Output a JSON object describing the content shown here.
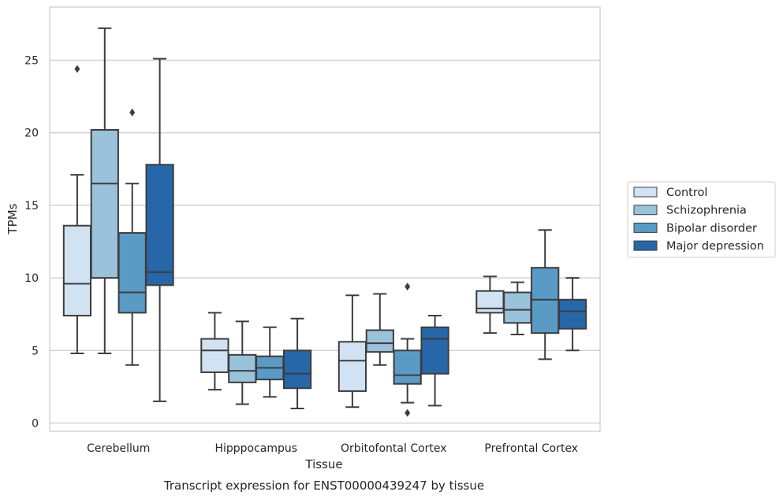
{
  "chart_data": {
    "type": "boxplot",
    "xlabel": "Tissue",
    "ylabel": "TPMs",
    "caption": "Transcript expression for ENST00000439247 by tissue",
    "ylim": [
      -0.6,
      28.0
    ],
    "yticks": [
      0,
      5,
      10,
      15,
      20,
      25
    ],
    "grid": "horizontal",
    "legend_position": "right",
    "categories": [
      "Cerebellum",
      "Hipppocampus",
      "Orbitofontal Cortex",
      "Prefrontal Cortex"
    ],
    "series": [
      {
        "name": "Control",
        "color": "#d1e2f2",
        "boxes": [
          {
            "whislo": 4.8,
            "q1": 7.4,
            "med": 9.6,
            "q3": 13.6,
            "whishi": 17.1,
            "fliers": [
              24.4
            ]
          },
          {
            "whislo": 2.3,
            "q1": 3.5,
            "med": 5.0,
            "q3": 5.8,
            "whishi": 7.6,
            "fliers": []
          },
          {
            "whislo": 1.1,
            "q1": 2.2,
            "med": 4.3,
            "q3": 5.6,
            "whishi": 8.8,
            "fliers": []
          },
          {
            "whislo": 6.2,
            "q1": 7.6,
            "med": 7.9,
            "q3": 9.1,
            "whishi": 10.1,
            "fliers": []
          }
        ]
      },
      {
        "name": "Schizophrenia",
        "color": "#9ac2db",
        "boxes": [
          {
            "whislo": 4.8,
            "q1": 10.0,
            "med": 16.5,
            "q3": 20.2,
            "whishi": 27.2,
            "fliers": []
          },
          {
            "whislo": 1.3,
            "q1": 2.8,
            "med": 3.6,
            "q3": 4.7,
            "whishi": 7.0,
            "fliers": []
          },
          {
            "whislo": 4.0,
            "q1": 4.9,
            "med": 5.5,
            "q3": 6.4,
            "whishi": 8.9,
            "fliers": []
          },
          {
            "whislo": 6.1,
            "q1": 6.9,
            "med": 7.8,
            "q3": 9.0,
            "whishi": 9.7,
            "fliers": []
          }
        ]
      },
      {
        "name": "Bipolar disorder",
        "color": "#5a9bc6",
        "boxes": [
          {
            "whislo": 4.0,
            "q1": 7.6,
            "med": 9.0,
            "q3": 13.1,
            "whishi": 16.5,
            "fliers": [
              21.4
            ]
          },
          {
            "whislo": 1.8,
            "q1": 3.0,
            "med": 3.8,
            "q3": 4.6,
            "whishi": 6.6,
            "fliers": []
          },
          {
            "whislo": 1.4,
            "q1": 2.7,
            "med": 3.3,
            "q3": 5.0,
            "whishi": 5.8,
            "fliers": [
              9.4,
              0.7
            ]
          },
          {
            "whislo": 4.4,
            "q1": 6.2,
            "med": 8.5,
            "q3": 10.7,
            "whishi": 13.3,
            "fliers": []
          }
        ]
      },
      {
        "name": "Major depression",
        "color": "#2767a9",
        "boxes": [
          {
            "whislo": 1.5,
            "q1": 9.5,
            "med": 10.4,
            "q3": 17.8,
            "whishi": 25.1,
            "fliers": []
          },
          {
            "whislo": 1.0,
            "q1": 2.4,
            "med": 3.4,
            "q3": 5.0,
            "whishi": 7.2,
            "fliers": []
          },
          {
            "whislo": 1.2,
            "q1": 3.4,
            "med": 5.8,
            "q3": 6.6,
            "whishi": 7.4,
            "fliers": []
          },
          {
            "whislo": 5.0,
            "q1": 6.5,
            "med": 7.7,
            "q3": 8.5,
            "whishi": 10.0,
            "fliers": []
          }
        ]
      }
    ]
  }
}
